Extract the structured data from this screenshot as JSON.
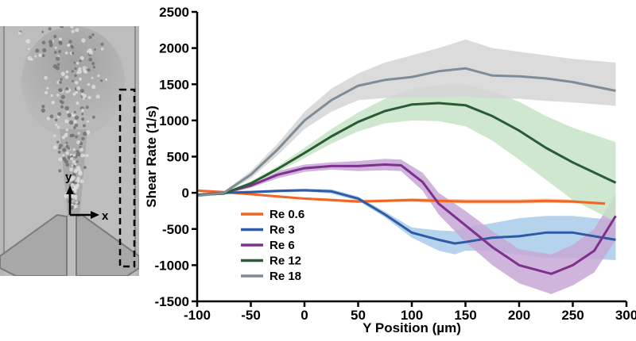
{
  "micrograph": {
    "axis_x_label": "x",
    "axis_y_label": "y"
  },
  "chart_data": {
    "type": "line",
    "xlabel": "Y Position (µm)",
    "ylabel": "Shear Rate (1/s)",
    "xlim": [
      -100,
      300
    ],
    "ylim": [
      -1500,
      2500
    ],
    "xticks": [
      -100,
      -50,
      0,
      50,
      100,
      150,
      200,
      250,
      300
    ],
    "yticks": [
      -1500,
      -1000,
      -500,
      0,
      500,
      1000,
      1500,
      2000,
      2500
    ],
    "grid": false,
    "legend_position": "bottom-left",
    "series": [
      {
        "name": "Re 0.6",
        "color": "#f26522",
        "band_color": "#f9c49e",
        "x": [
          -100,
          -75,
          -50,
          -25,
          0,
          25,
          50,
          75,
          100,
          125,
          150,
          175,
          200,
          225,
          250,
          280
        ],
        "y": [
          30,
          10,
          -20,
          -50,
          -80,
          -100,
          -120,
          -110,
          -100,
          -110,
          -120,
          -120,
          -120,
          -110,
          -120,
          -150
        ],
        "lower": [
          10,
          -5,
          -35,
          -65,
          -95,
          -120,
          -140,
          -130,
          -125,
          -140,
          -150,
          -150,
          -150,
          -140,
          -145,
          -175
        ],
        "upper": [
          50,
          25,
          -5,
          -35,
          -65,
          -80,
          -100,
          -90,
          -75,
          -80,
          -90,
          -90,
          -90,
          -80,
          -95,
          -125
        ]
      },
      {
        "name": "Re 3",
        "color": "#2e5aa8",
        "band_color": "#a8cbe9",
        "x": [
          -100,
          -75,
          -50,
          -25,
          0,
          25,
          50,
          75,
          100,
          125,
          140,
          150,
          175,
          200,
          225,
          250,
          290
        ],
        "y": [
          -30,
          0,
          10,
          25,
          35,
          20,
          -80,
          -300,
          -550,
          -650,
          -700,
          -680,
          -620,
          -600,
          -550,
          -550,
          -650
        ],
        "lower": [
          -50,
          -20,
          -10,
          5,
          15,
          -10,
          -110,
          -340,
          -620,
          -800,
          -850,
          -800,
          -800,
          -850,
          -900,
          -900,
          -930
        ],
        "upper": [
          -10,
          20,
          30,
          45,
          55,
          50,
          -50,
          -260,
          -480,
          -520,
          -530,
          -480,
          -420,
          -350,
          -320,
          -320,
          -380
        ]
      },
      {
        "name": "Re 6",
        "color": "#7f2f8e",
        "band_color": "#c7a8d6",
        "x": [
          -100,
          -75,
          -50,
          -25,
          0,
          25,
          50,
          75,
          90,
          110,
          125,
          150,
          175,
          200,
          230,
          250,
          270,
          290
        ],
        "y": [
          -30,
          0,
          100,
          250,
          340,
          370,
          370,
          390,
          380,
          150,
          -150,
          -450,
          -750,
          -1000,
          -1120,
          -1000,
          -800,
          -320
        ],
        "lower": [
          -50,
          -20,
          70,
          200,
          290,
          320,
          300,
          310,
          300,
          30,
          -300,
          -680,
          -1000,
          -1250,
          -1400,
          -1280,
          -1100,
          -650
        ],
        "upper": [
          -10,
          20,
          130,
          300,
          390,
          420,
          440,
          470,
          460,
          280,
          0,
          -250,
          -530,
          -780,
          -850,
          -720,
          -500,
          -10
        ]
      },
      {
        "name": "Re 12",
        "color": "#2a5c34",
        "band_color": "#c6e3c6",
        "x": [
          -100,
          -75,
          -50,
          -25,
          0,
          25,
          50,
          75,
          100,
          125,
          150,
          175,
          200,
          225,
          250,
          290
        ],
        "y": [
          -30,
          -10,
          130,
          330,
          550,
          780,
          980,
          1130,
          1220,
          1240,
          1210,
          1060,
          860,
          620,
          420,
          140
        ],
        "lower": [
          -50,
          -30,
          100,
          290,
          480,
          680,
          850,
          960,
          1000,
          990,
          920,
          720,
          460,
          180,
          -100,
          -400
        ],
        "upper": [
          -10,
          10,
          160,
          370,
          620,
          880,
          1110,
          1300,
          1440,
          1490,
          1500,
          1400,
          1260,
          1060,
          900,
          700
        ]
      },
      {
        "name": "Re 18",
        "color": "#7f8c96",
        "band_color": "#d5d5d5",
        "x": [
          -100,
          -75,
          -50,
          -25,
          0,
          25,
          50,
          75,
          100,
          125,
          150,
          175,
          200,
          225,
          250,
          290
        ],
        "y": [
          -40,
          0,
          250,
          600,
          1000,
          1280,
          1480,
          1560,
          1600,
          1680,
          1720,
          1620,
          1610,
          1580,
          1530,
          1410
        ],
        "lower": [
          -60,
          -20,
          200,
          520,
          880,
          1120,
          1280,
          1310,
          1320,
          1320,
          1330,
          1300,
          1300,
          1270,
          1250,
          1200
        ],
        "upper": [
          -20,
          20,
          300,
          680,
          1120,
          1440,
          1650,
          1800,
          1900,
          2000,
          2120,
          2000,
          1950,
          1900,
          1850,
          1800
        ]
      }
    ]
  }
}
